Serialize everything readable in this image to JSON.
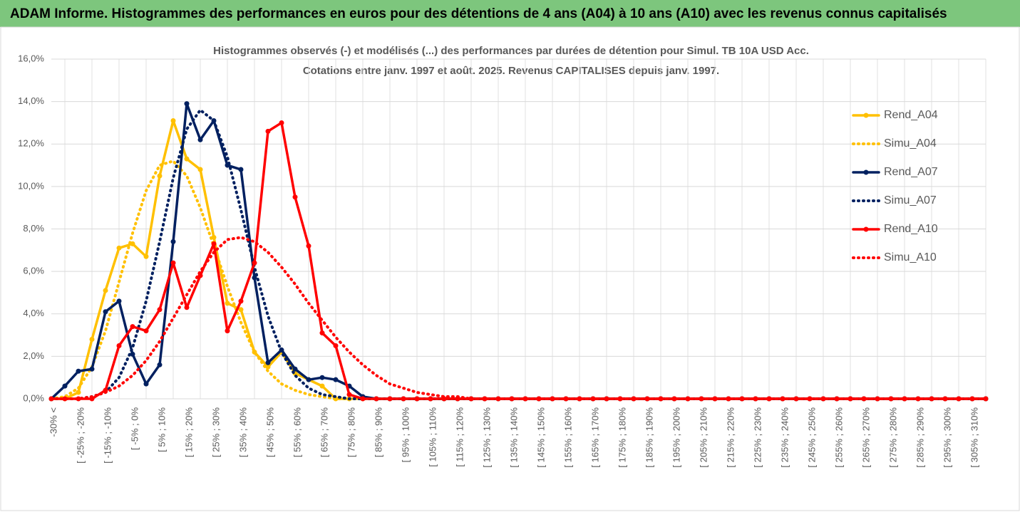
{
  "header": {
    "title": "ADAM Informe. Histogrammes des performances en euros pour des détentions de 4 ans (A04) à 10 ans (A10) avec les revenus connus capitalisés"
  },
  "chart_data": {
    "type": "line",
    "title": "Histogrammes observés (-) et modélisés (...) des performances par durées de détention pour Simul. TB 10A USD Acc.",
    "subtitle": "Cotations entre janv. 1997 et août. 2025. Revenus CAPITALISES depuis janv. 1997.",
    "categories": [
      "-30% <",
      null,
      "[ -25% ; -20%",
      null,
      "[ -15% ; -10%",
      null,
      "[ -5% ; 0%",
      null,
      "[ 5% ; 10%",
      null,
      "[ 15% ; 20%",
      null,
      "[ 25% ; 30%",
      null,
      "[ 35% ; 40%",
      null,
      "[ 45% ; 50%",
      null,
      "[ 55% ; 60%",
      null,
      "[ 65% ; 70%",
      null,
      "[ 75% ; 80%",
      null,
      "[ 85% ; 90%",
      null,
      "[ 95% ; 100%",
      null,
      "[ 105% ; 110%",
      null,
      "[ 115% ; 120%",
      null,
      "[ 125% ; 130%",
      null,
      "[ 135% ; 140%",
      null,
      "[ 145% ; 150%",
      null,
      "[ 155% ; 160%",
      null,
      "[ 165% ; 170%",
      null,
      "[ 175% ; 180%",
      null,
      "[ 185% ; 190%",
      null,
      "[ 195% ; 200%",
      null,
      "[ 205% ; 210%",
      null,
      "[ 215% ; 220%",
      null,
      "[ 225% ; 230%",
      null,
      "[ 235% ; 240%",
      null,
      "[ 245% ; 250%",
      null,
      "[ 255% ; 260%",
      null,
      "[ 265% ; 270%",
      null,
      "[ 275% ; 280%",
      null,
      "[ 285% ; 290%",
      null,
      "[ 295% ; 300%",
      null,
      "[ 305% ; 310%",
      null
    ],
    "ylim": [
      0,
      16
    ],
    "yticks": [
      {
        "value": 0,
        "label": "0,0%"
      },
      {
        "value": 2,
        "label": "2,0%"
      },
      {
        "value": 4,
        "label": "4,0%"
      },
      {
        "value": 6,
        "label": "6,0%"
      },
      {
        "value": 8,
        "label": "8,0%"
      },
      {
        "value": 10,
        "label": "10,0%"
      },
      {
        "value": 12,
        "label": "12,0%"
      },
      {
        "value": 14,
        "label": "14,0%"
      },
      {
        "value": 16,
        "label": "16,0%"
      }
    ],
    "grid": true,
    "legend": "right",
    "series": [
      {
        "name": "Rend_A04",
        "color": "#ffc000",
        "style": "solid",
        "marker": true,
        "values": [
          0,
          0,
          0.3,
          2.8,
          5.1,
          7.1,
          7.3,
          6.7,
          10.5,
          13.1,
          11.3,
          10.8,
          7.6,
          4.5,
          4.2,
          2.2,
          1.5,
          2.2,
          1.2,
          0.9,
          0.6,
          0,
          0,
          0,
          0,
          0,
          0,
          0,
          0,
          0,
          0,
          0,
          0,
          0,
          0,
          0,
          0,
          0,
          0,
          0,
          0,
          0,
          0,
          0,
          0,
          0,
          0,
          0,
          0,
          0,
          0,
          0,
          0,
          0,
          0,
          0,
          0,
          0,
          0,
          0,
          0,
          0,
          0,
          0,
          0,
          0,
          0,
          0,
          0,
          0
        ]
      },
      {
        "name": "Simu_A04",
        "color": "#ffc000",
        "style": "dotted",
        "marker": false,
        "values": [
          0,
          0.1,
          0.5,
          1.5,
          3.2,
          5.5,
          7.8,
          9.8,
          11.0,
          11.2,
          10.5,
          9.0,
          7.2,
          5.3,
          3.6,
          2.2,
          1.3,
          0.7,
          0.4,
          0.2,
          0.1,
          0,
          0,
          0,
          0,
          0,
          0,
          0,
          0,
          0,
          0,
          0,
          0,
          0,
          0,
          0,
          0,
          0,
          0,
          0,
          0,
          0,
          0,
          0,
          0,
          0,
          0,
          0,
          0,
          0,
          0,
          0,
          0,
          0,
          0,
          0,
          0,
          0,
          0,
          0,
          0,
          0,
          0,
          0,
          0,
          0,
          0,
          0,
          0,
          0
        ]
      },
      {
        "name": "Rend_A07",
        "color": "#002060",
        "style": "solid",
        "marker": true,
        "values": [
          0,
          0.6,
          1.3,
          1.4,
          4.1,
          4.6,
          2.1,
          0.7,
          1.6,
          7.4,
          13.9,
          12.2,
          13.1,
          11.0,
          10.8,
          5.7,
          1.7,
          2.3,
          1.4,
          0.9,
          1.0,
          0.9,
          0.6,
          0.1,
          0,
          0,
          0,
          0,
          0,
          0,
          0,
          0,
          0,
          0,
          0,
          0,
          0,
          0,
          0,
          0,
          0,
          0,
          0,
          0,
          0,
          0,
          0,
          0,
          0,
          0,
          0,
          0,
          0,
          0,
          0,
          0,
          0,
          0,
          0,
          0,
          0,
          0,
          0,
          0,
          0,
          0,
          0,
          0,
          0,
          0
        ]
      },
      {
        "name": "Simu_A07",
        "color": "#002060",
        "style": "dotted",
        "marker": false,
        "values": [
          0,
          0,
          0,
          0.1,
          0.3,
          1.0,
          2.4,
          4.6,
          7.4,
          10.4,
          12.7,
          13.6,
          13.1,
          11.4,
          8.9,
          6.2,
          3.9,
          2.2,
          1.1,
          0.5,
          0.2,
          0.1,
          0,
          0,
          0,
          0,
          0,
          0,
          0,
          0,
          0,
          0,
          0,
          0,
          0,
          0,
          0,
          0,
          0,
          0,
          0,
          0,
          0,
          0,
          0,
          0,
          0,
          0,
          0,
          0,
          0,
          0,
          0,
          0,
          0,
          0,
          0,
          0,
          0,
          0,
          0,
          0,
          0,
          0,
          0,
          0,
          0,
          0,
          0,
          0
        ]
      },
      {
        "name": "Rend_A10",
        "color": "#ff0000",
        "style": "solid",
        "marker": true,
        "values": [
          0,
          0,
          0,
          0,
          0.4,
          2.5,
          3.4,
          3.2,
          4.2,
          6.4,
          4.3,
          5.8,
          7.3,
          3.2,
          4.6,
          6.4,
          12.6,
          13.0,
          9.5,
          7.2,
          3.1,
          2.5,
          0.2,
          0,
          0,
          0,
          0,
          0,
          0,
          0,
          0,
          0,
          0,
          0,
          0,
          0,
          0,
          0,
          0,
          0,
          0,
          0,
          0,
          0,
          0,
          0,
          0,
          0,
          0,
          0,
          0,
          0,
          0,
          0,
          0,
          0,
          0,
          0,
          0,
          0,
          0,
          0,
          0,
          0,
          0,
          0,
          0,
          0,
          0,
          0
        ]
      },
      {
        "name": "Simu_A10",
        "color": "#ff0000",
        "style": "dotted",
        "marker": false,
        "values": [
          0,
          0,
          0,
          0.1,
          0.3,
          0.6,
          1.1,
          1.8,
          2.7,
          3.8,
          4.9,
          6.0,
          6.9,
          7.5,
          7.6,
          7.4,
          6.9,
          6.2,
          5.4,
          4.5,
          3.7,
          2.9,
          2.2,
          1.6,
          1.1,
          0.7,
          0.5,
          0.3,
          0.2,
          0.1,
          0.1,
          0,
          0,
          0,
          0,
          0,
          0,
          0,
          0,
          0,
          0,
          0,
          0,
          0,
          0,
          0,
          0,
          0,
          0,
          0,
          0,
          0,
          0,
          0,
          0,
          0,
          0,
          0,
          0,
          0,
          0,
          0,
          0,
          0,
          0,
          0,
          0,
          0,
          0,
          0
        ]
      }
    ]
  }
}
